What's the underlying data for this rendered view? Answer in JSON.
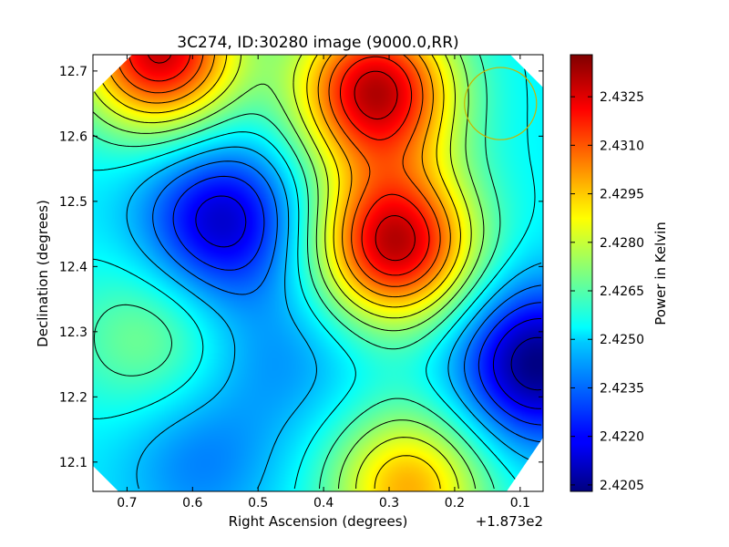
{
  "chart_data": {
    "type": "heatmap",
    "title": "3C274, ID:30280 image (9000.0,RR)",
    "xlabel": "Right Ascension (degrees)",
    "ylabel": "Declination (degrees)",
    "x_offset_text": "+1.873e2",
    "xlim": [
      0.752,
      0.065
    ],
    "ylim": [
      12.055,
      12.725
    ],
    "x_ticks": [
      {
        "value": 0.7,
        "label": "0.7"
      },
      {
        "value": 0.6,
        "label": "0.6"
      },
      {
        "value": 0.5,
        "label": "0.5"
      },
      {
        "value": 0.4,
        "label": "0.4"
      },
      {
        "value": 0.3,
        "label": "0.3"
      },
      {
        "value": 0.2,
        "label": "0.2"
      },
      {
        "value": 0.1,
        "label": "0.1"
      }
    ],
    "y_ticks": [
      {
        "value": 12.1,
        "label": "12.1"
      },
      {
        "value": 12.2,
        "label": "12.2"
      },
      {
        "value": 12.3,
        "label": "12.3"
      },
      {
        "value": 12.4,
        "label": "12.4"
      },
      {
        "value": 12.5,
        "label": "12.5"
      },
      {
        "value": 12.6,
        "label": "12.6"
      },
      {
        "value": 12.7,
        "label": "12.7"
      }
    ],
    "colorbar": {
      "label": "Power in Kelvin",
      "range": [
        2.4203,
        2.4338
      ],
      "colormap": "jet",
      "ticks": [
        {
          "value": 2.4205,
          "label": "2.4205"
        },
        {
          "value": 2.422,
          "label": "2.4220"
        },
        {
          "value": 2.4235,
          "label": "2.4235"
        },
        {
          "value": 2.425,
          "label": "2.4250"
        },
        {
          "value": 2.4265,
          "label": "2.4265"
        },
        {
          "value": 2.428,
          "label": "2.4280"
        },
        {
          "value": 2.4295,
          "label": "2.4295"
        },
        {
          "value": 2.431,
          "label": "2.4310"
        },
        {
          "value": 2.4325,
          "label": "2.4325"
        }
      ]
    },
    "field_features": [
      {
        "kind": "peak",
        "x": 0.29,
        "y": 12.435,
        "value": 2.433
      },
      {
        "kind": "peak",
        "x": 0.32,
        "y": 12.67,
        "value": 2.433
      },
      {
        "kind": "peak",
        "x": 0.65,
        "y": 12.73,
        "value": 2.4328
      },
      {
        "kind": "peak",
        "x": 0.27,
        "y": 12.06,
        "value": 2.4298
      },
      {
        "kind": "peak",
        "x": 0.67,
        "y": 12.29,
        "value": 2.427
      },
      {
        "kind": "trough",
        "x": 0.555,
        "y": 12.47,
        "value": 2.4212
      },
      {
        "kind": "trough",
        "x": 0.075,
        "y": 12.25,
        "value": 2.4203
      },
      {
        "kind": "trough",
        "x": 0.59,
        "y": 12.1,
        "value": 2.4237
      },
      {
        "kind": "trough",
        "x": 0.46,
        "y": 12.26,
        "value": 2.424
      }
    ],
    "beam_circle": {
      "x": 0.13,
      "y": 12.65,
      "radius_deg": 0.055,
      "color": "#c8b400"
    },
    "contours": "black",
    "grid": false
  }
}
